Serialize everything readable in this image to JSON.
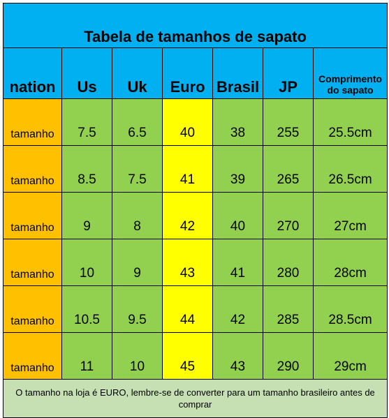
{
  "title": "Tabela de tamanhos de sapato",
  "headers": [
    "nation",
    "Us",
    "Uk",
    "Euro",
    "Brasil",
    "JP",
    "Comprimento do sapato"
  ],
  "rows": [
    [
      "tamanho",
      "7.5",
      "6.5",
      "40",
      "38",
      "255",
      "25.5cm"
    ],
    [
      "tamanho",
      "8.5",
      "7.5",
      "41",
      "39",
      "265",
      "26.5cm"
    ],
    [
      "tamanho",
      "9",
      "8",
      "42",
      "40",
      "270",
      "27cm"
    ],
    [
      "tamanho",
      "10",
      "9",
      "43",
      "41",
      "280",
      "28cm"
    ],
    [
      "tamanho",
      "10.5",
      "9.5",
      "44",
      "42",
      "285",
      "28.5cm"
    ],
    [
      "tamanho",
      "11",
      "10",
      "45",
      "43",
      "290",
      "29cm"
    ]
  ],
  "note": "O tamanho na loja é EURO, lembre-se de converter para um tamanho brasileiro antes de comprar",
  "colors": {
    "header": "#00b0f0",
    "label": "#ffc000",
    "cell": "#92d050",
    "euro": "#ffff00",
    "note": "#c6e0b4"
  }
}
